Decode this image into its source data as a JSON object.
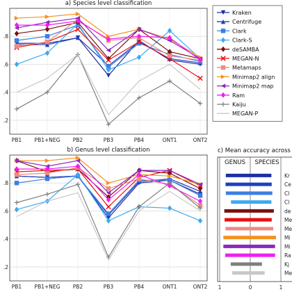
{
  "chart_data": [
    {
      "type": "line",
      "title": "a) Species level classification",
      "categories": [
        "PB1",
        "PB1+NEG",
        "PB2",
        "PB3",
        "PB4",
        "ONT1",
        "ONT2"
      ],
      "ylim": [
        0.1,
        1.0
      ],
      "yticks": [
        0.2,
        0.4,
        0.6,
        0.8
      ],
      "ytick_labels": [
        ".2",
        ".4",
        ".6",
        ".8"
      ],
      "grid": true,
      "legend_position": "right",
      "series": [
        {
          "name": "Kraken",
          "color": "#1f2ea3",
          "marker": "tri-down",
          "dash": "",
          "values": [
            0.75,
            0.75,
            0.79,
            0.52,
            0.77,
            0.63,
            0.6
          ]
        },
        {
          "name": "Centrifuge",
          "color": "#1f3fbf",
          "marker": "tri-up",
          "dash": "",
          "values": [
            0.74,
            0.74,
            0.79,
            0.59,
            0.76,
            0.64,
            0.61
          ]
        },
        {
          "name": "Clark",
          "color": "#3d7fe0",
          "marker": "square",
          "dash": "",
          "values": [
            0.77,
            0.8,
            0.88,
            0.58,
            0.75,
            0.67,
            0.62
          ]
        },
        {
          "name": "Clark-S",
          "color": "#3fa9ef",
          "marker": "diamond",
          "dash": "",
          "values": [
            0.6,
            0.68,
            0.89,
            0.56,
            0.65,
            0.84,
            0.64
          ]
        },
        {
          "name": "deSAMBA",
          "color": "#7b1010",
          "marker": "diamond",
          "dash": "",
          "values": [
            0.82,
            0.85,
            0.9,
            0.64,
            0.85,
            0.69,
            0.64
          ]
        },
        {
          "name": "MEGAN-N",
          "color": "#e81010",
          "marker": "x",
          "dash": "",
          "values": [
            0.72,
            0.76,
            0.85,
            0.63,
            0.76,
            0.64,
            0.5
          ]
        },
        {
          "name": "Metamaps",
          "color": "#f08a80",
          "marker": "square",
          "dash": "",
          "values": [
            0.73,
            0.76,
            0.92,
            0.77,
            0.79,
            0.66,
            0.63
          ]
        },
        {
          "name": "Minimap2 align",
          "color": "#f39220",
          "marker": "tri-right",
          "dash": "",
          "values": [
            0.93,
            0.94,
            0.96,
            0.8,
            0.85,
            0.78,
            0.65
          ]
        },
        {
          "name": "Minimap2 map",
          "color": "#8b28c0",
          "marker": "tri-left",
          "dash": "",
          "values": [
            0.86,
            0.9,
            0.93,
            0.7,
            0.85,
            0.77,
            0.64
          ]
        },
        {
          "name": "Ram",
          "color": "#f01ef0",
          "marker": "diamond",
          "dash": "",
          "values": [
            0.88,
            0.88,
            0.91,
            0.78,
            0.8,
            0.79,
            0.63
          ]
        },
        {
          "name": "Kaiju",
          "color": "#7f7f7f",
          "marker": "plus",
          "dash": "",
          "values": [
            0.28,
            0.4,
            0.67,
            0.17,
            0.36,
            0.48,
            0.32
          ]
        },
        {
          "name": "MEGAN-P",
          "color": "#c8c8c8",
          "marker": "none",
          "dash": "",
          "values": [
            0.4,
            0.5,
            0.67,
            0.24,
            0.48,
            0.6,
            0.42
          ]
        }
      ]
    },
    {
      "type": "line",
      "title": "b) Genus level classification",
      "categories": [
        "PB1",
        "PB1+NEG",
        "PB2",
        "PB3",
        "PB4",
        "ONT1",
        "ONT2"
      ],
      "ylim": [
        0.1,
        1.0
      ],
      "yticks": [
        0.2,
        0.4,
        0.6,
        0.8
      ],
      "ytick_labels": [
        ".2",
        ".4",
        ".6",
        ".8"
      ],
      "grid": true,
      "series": [
        {
          "name": "Kraken",
          "color": "#1f2ea3",
          "marker": "tri-down",
          "values": [
            0.85,
            0.84,
            0.85,
            0.55,
            0.8,
            0.82,
            0.72
          ]
        },
        {
          "name": "Centrifuge",
          "color": "#1f3fbf",
          "marker": "tri-up",
          "values": [
            0.85,
            0.84,
            0.85,
            0.57,
            0.81,
            0.83,
            0.74
          ]
        },
        {
          "name": "Clark",
          "color": "#3d7fe0",
          "marker": "square",
          "values": [
            0.8,
            0.83,
            0.85,
            0.58,
            0.82,
            0.82,
            0.71
          ]
        },
        {
          "name": "Clark-S",
          "color": "#3fa9ef",
          "marker": "diamond",
          "values": [
            0.61,
            0.67,
            0.86,
            0.53,
            0.63,
            0.62,
            0.53
          ]
        },
        {
          "name": "deSAMBA",
          "color": "#7b1010",
          "marker": "diamond",
          "values": [
            0.96,
            0.88,
            0.9,
            0.7,
            0.89,
            0.87,
            0.76
          ]
        },
        {
          "name": "MEGAN-N",
          "color": "#e81010",
          "marker": "x",
          "values": [
            0.88,
            0.89,
            0.9,
            0.63,
            0.84,
            0.89,
            0.78
          ]
        },
        {
          "name": "Metamaps",
          "color": "#f08a80",
          "marker": "square",
          "values": [
            0.86,
            0.87,
            0.91,
            0.76,
            0.83,
            0.79,
            0.64
          ]
        },
        {
          "name": "Minimap2 align",
          "color": "#f39220",
          "marker": "tri-right",
          "values": [
            0.96,
            0.96,
            0.98,
            0.8,
            0.86,
            0.85,
            0.79
          ]
        },
        {
          "name": "Minimap2 map",
          "color": "#8b28c0",
          "marker": "tri-left",
          "values": [
            0.96,
            0.92,
            0.96,
            0.73,
            0.89,
            0.89,
            0.79
          ]
        },
        {
          "name": "Ram",
          "color": "#f01ef0",
          "marker": "diamond",
          "values": [
            0.9,
            0.9,
            0.92,
            0.68,
            0.86,
            0.78,
            0.67
          ]
        },
        {
          "name": "Kaiju",
          "color": "#7f7f7f",
          "marker": "plus",
          "values": [
            0.66,
            0.72,
            0.79,
            0.27,
            0.63,
            0.8,
            0.62
          ]
        },
        {
          "name": "MEGAN-P",
          "color": "#c8c8c8",
          "marker": "none",
          "values": [
            0.56,
            0.67,
            0.73,
            0.25,
            0.6,
            0.74,
            0.6
          ]
        }
      ]
    },
    {
      "type": "bar",
      "orientation": "horizontal-diverging",
      "title": "c) Mean accuracy across all samples",
      "left_label": "GENUS",
      "right_label": "SPECIES",
      "xtick_labels": [
        "1",
        "0",
        "1"
      ],
      "xlim": [
        -1,
        1
      ],
      "categories": [
        "Kraken",
        "Centrifuge",
        "Clark",
        "Clark-S",
        "deSAMBA",
        "MEGAN-N",
        "Metamaps",
        "Minimap2 align",
        "Minimap2 map",
        "Ram",
        "Kaiju",
        "MEGAN-P"
      ],
      "label_stubs": [
        "Kr",
        "Ce",
        "Cl",
        "Cl",
        "de",
        "Me",
        "Me",
        "Mi",
        "Mi",
        "Ra",
        "Kj",
        "Me"
      ],
      "genus": [
        0.8,
        0.81,
        0.8,
        0.63,
        0.85,
        0.84,
        0.81,
        0.88,
        0.88,
        0.82,
        0.64,
        0.59
      ],
      "species": [
        0.69,
        0.7,
        0.72,
        0.69,
        0.77,
        0.7,
        0.75,
        0.84,
        0.81,
        0.81,
        0.38,
        0.47
      ],
      "colors": [
        "#1f2ea3",
        "#1f3fbf",
        "#3d7fe0",
        "#3fa9ef",
        "#7b1010",
        "#e81010",
        "#f08a80",
        "#f39220",
        "#8b28c0",
        "#f01ef0",
        "#7f7f7f",
        "#c8c8c8"
      ]
    }
  ]
}
